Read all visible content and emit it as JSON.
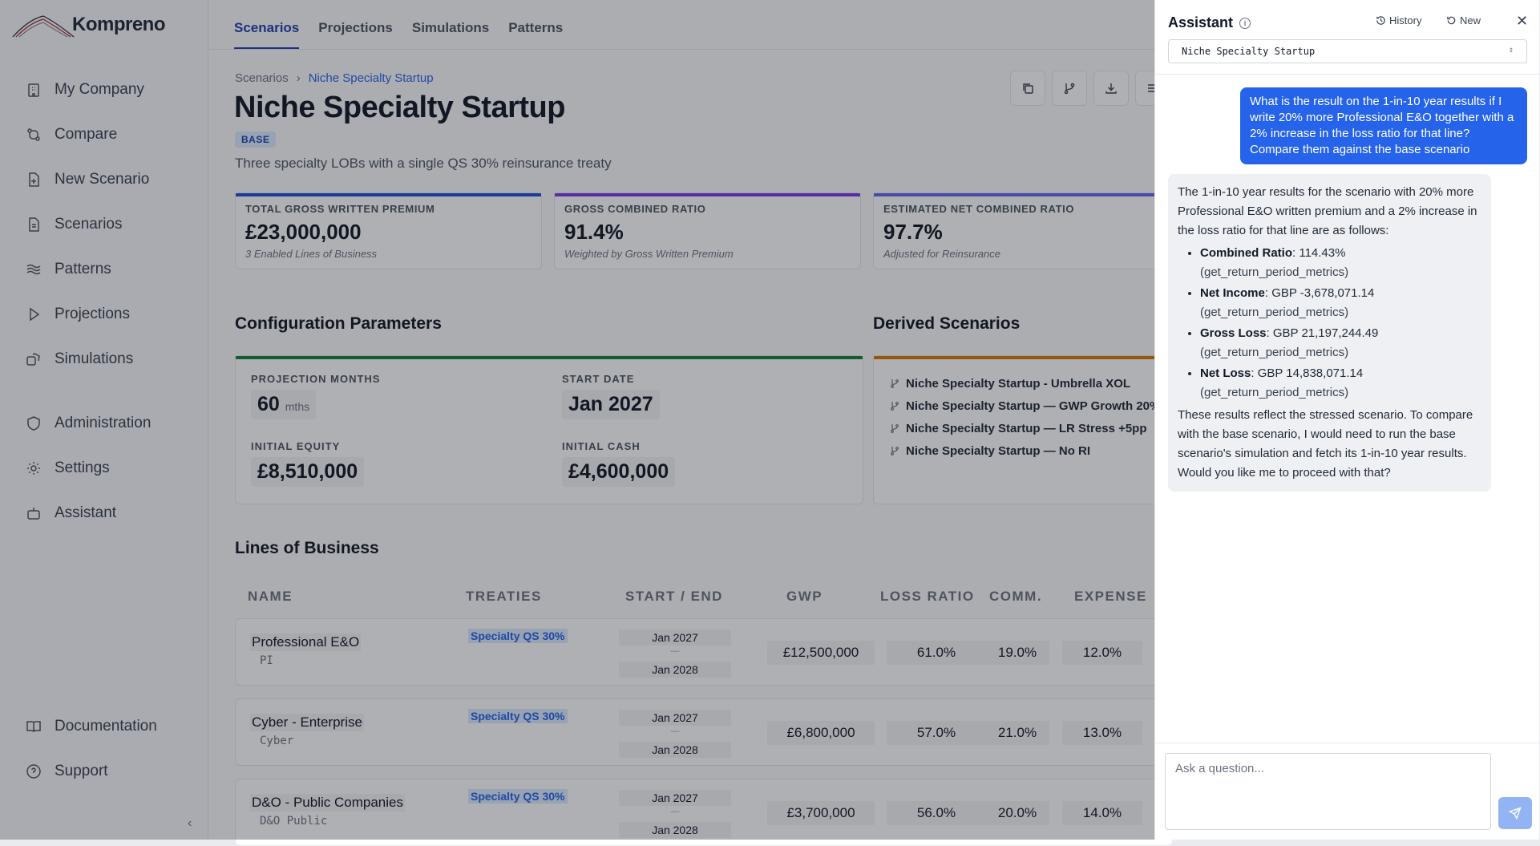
{
  "app": {
    "name": "Kompreno"
  },
  "sidebar": {
    "items": [
      {
        "label": "My Company",
        "icon": "building-icon"
      },
      {
        "label": "Compare",
        "icon": "compare-icon"
      },
      {
        "label": "New Scenario",
        "icon": "file-plus-icon"
      },
      {
        "label": "Scenarios",
        "icon": "file-text-icon"
      },
      {
        "label": "Patterns",
        "icon": "waves-icon"
      },
      {
        "label": "Projections",
        "icon": "play-icon"
      },
      {
        "label": "Simulations",
        "icon": "dice-icon"
      },
      {
        "label": "Administration",
        "icon": "shield-icon"
      },
      {
        "label": "Settings",
        "icon": "gear-icon"
      },
      {
        "label": "Assistant",
        "icon": "bot-icon"
      }
    ],
    "bottom": [
      {
        "label": "Documentation",
        "icon": "book-icon"
      },
      {
        "label": "Support",
        "icon": "help-circle-icon"
      }
    ],
    "collapse": "‹"
  },
  "topnav": {
    "tabs": [
      "Scenarios",
      "Projections",
      "Simulations",
      "Patterns"
    ],
    "active": "Scenarios"
  },
  "breadcrumb": {
    "root": "Scenarios",
    "sep": "›",
    "current": "Niche Specialty Startup"
  },
  "page": {
    "title": "Niche Specialty Startup",
    "badge": "BASE",
    "subtitle": "Three specialty LOBs with a single QS 30% reinsurance treaty"
  },
  "stats": [
    {
      "label": "Total Gross Written Premium",
      "value": "£23,000,000",
      "note": "3 Enabled Lines of Business",
      "color": "#1d4ed8"
    },
    {
      "label": "Gross Combined Ratio",
      "value": "91.4%",
      "note": "Weighted by Gross Written Premium",
      "color": "#7c3aed"
    },
    {
      "label": "Estimated Net Combined Ratio",
      "value": "97.7%",
      "note": "Adjusted for Reinsurance",
      "color": "#6366f1"
    }
  ],
  "config": {
    "title": "Configuration Parameters",
    "projection_months_label": "Projection Months",
    "projection_months": "60",
    "projection_months_unit": "mths",
    "start_date_label": "Start Date",
    "start_date": "Jan 2027",
    "initial_equity_label": "Initial Equity",
    "initial_equity": "£8,510,000",
    "initial_cash_label": "Initial Cash",
    "initial_cash": "£4,600,000"
  },
  "derived": {
    "title": "Derived Scenarios",
    "items": [
      "Niche Specialty Startup - Umbrella XOL",
      "Niche Specialty Startup — GWP Growth 20%",
      "Niche Specialty Startup — LR Stress +5pp",
      "Niche Specialty Startup — No RI"
    ]
  },
  "lob": {
    "title": "Lines of Business",
    "headers": [
      "NAME",
      "TREATIES",
      "START / END",
      "GWP",
      "LOSS RATIO",
      "COMM.",
      "EXPENSE"
    ],
    "rows": [
      {
        "name": "Professional E&O",
        "code": "PI",
        "treaty": "Specialty QS 30%",
        "start": "Jan 2027",
        "end": "Jan 2028",
        "gwp": "£12,500,000",
        "lr": "61.0%",
        "comm": "19.0%",
        "exp": "12.0%"
      },
      {
        "name": "Cyber - Enterprise",
        "code": "Cyber",
        "treaty": "Specialty QS 30%",
        "start": "Jan 2027",
        "end": "Jan 2028",
        "gwp": "£6,800,000",
        "lr": "57.0%",
        "comm": "21.0%",
        "exp": "13.0%"
      },
      {
        "name": "D&O - Public Companies",
        "code": "D&O Public",
        "treaty": "Specialty QS 30%",
        "start": "Jan 2027",
        "end": "Jan 2028",
        "gwp": "£3,700,000",
        "lr": "56.0%",
        "comm": "20.0%",
        "exp": "14.0%"
      }
    ],
    "dash": "—"
  },
  "assistant": {
    "title": "Assistant",
    "history_label": "History",
    "new_label": "New",
    "close": "✕",
    "scenario_select": "Niche Specialty Startup",
    "user_message": "What is the result on the 1-in-10 year results if I write 20% more Professional E&O together with a 2% increase in the loss ratio for that line? Compare them against the base scenario",
    "reply_intro": "The 1-in-10 year results for the scenario with 20% more Professional E&O written premium and a 2% increase in the loss ratio for that line are as follows:",
    "reply_items": [
      {
        "key": "Combined Ratio",
        "value": ": 114.43%",
        "source": "(get_return_period_metrics)"
      },
      {
        "key": "Net Income",
        "value": ": GBP -3,678,071.14",
        "source": "(get_return_period_metrics)"
      },
      {
        "key": "Gross Loss",
        "value": ": GBP 21,197,244.49",
        "source": "(get_return_period_metrics)"
      },
      {
        "key": "Net Loss",
        "value": ": GBP 14,838,071.14",
        "source": "(get_return_period_metrics)"
      }
    ],
    "reply_outro": "These results reflect the stressed scenario. To compare with the base scenario, I would need to run the base scenario's simulation and fetch its 1-in-10 year results. Would you like me to proceed with that?",
    "input_placeholder": "Ask a question..."
  }
}
